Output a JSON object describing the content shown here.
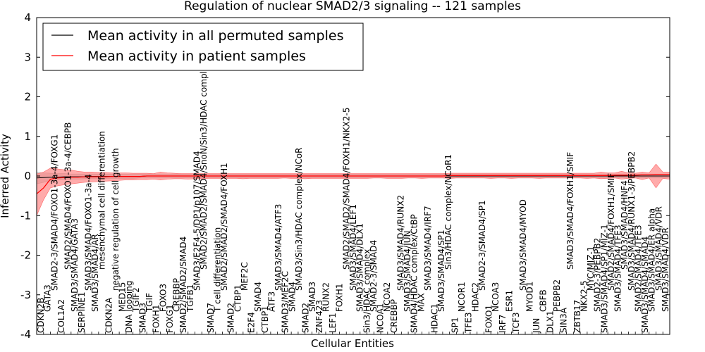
{
  "chart_data": {
    "type": "line",
    "title": "Regulation of nuclear SMAD2/3 signaling -- 121 samples",
    "xlabel": "Cellular Entities",
    "ylabel": "Inferred Activity",
    "ylim": [
      -4,
      4
    ],
    "yticks": [
      -4,
      -3,
      -2,
      -1,
      0,
      1,
      2,
      3,
      4
    ],
    "grid": false,
    "legend_position": "top-left",
    "categories": [
      "CDKN2B",
      "GATA3",
      "SMAD2-3/SMAD4/FOXO1-3a-4/FOXG1",
      "COL1A2",
      "SMAD2/SMAD4/FOXO1-3a-4/CEBPB",
      "SMAD3/SMAD4/GATA3",
      "SERPINE1",
      "SMAD3/SMAD4/FOXO1-3a-4",
      "SMAD3/SMAD4/AR",
      "mesenchymal cell differentiation",
      "CDKN2A",
      "negative regulation of cell growth",
      "MED15",
      "DNA looping",
      "TGIF2",
      "SMAD3",
      "TGIF",
      "FOXH1",
      "FOXO3",
      "FOXG1",
      "CREBBP",
      "SMAD2/SMAD2/SMAD4",
      "TGFB1",
      "SMAD3/E2F4-5/DP1/p107/SMAD4",
      "SMAD2/SMAD2/SMAD4/SnoN/Sin3/HDAC complex/NCoR",
      "SMAD7",
      "T cell differentiation",
      "SMAD2/SMAD2/SMAD4/FOXH1",
      "SMAD2",
      "CTBP1",
      "MEF2C",
      "E2F4",
      "SMAD4",
      "CTBP1",
      "ATF3",
      "SMAD3/SMAD4/ATF3",
      "SMAD3/MEF2C",
      "SMAD4",
      "SMAD3/Sin3/HDAC complex/NCoR",
      "SMAD2",
      "SMAD3",
      "ZNF423",
      "RUNX2",
      "LEF1",
      "FOXH1",
      "SMAD2/SMAD2/SMAD4/FOXH1/NKX2-5",
      "SMAD3/SMAD4/LEF1",
      "SMAD3/SMAD4/DLX1",
      "Sin3/HDAC complex",
      "SMAD2-3/SMAD4",
      "NCOA1",
      "NCOA2",
      "CREBBP",
      "SMAD3/SMAD4/RUNX2",
      "SMAD3/SMAD4/JUN",
      "SMAD4/HDAC complex/CtBP",
      "MAX",
      "SMAD3/SMAD4/IRF7",
      "HDAC1",
      "SMAD3/SMAD4/SP1",
      "Sin3/HDAC complex/NCoR1",
      "SP1",
      "NCOR1",
      "TFE3",
      "HDAC2",
      "SMAD2-3/SMAD4/SP1",
      "FOXO1",
      "NCOA3",
      "IRF7",
      "ESR1",
      "TCF3",
      "SMAD3/SMAD4/MYOD",
      "MYOD1",
      "JUN",
      "CBFB",
      "DLX1",
      "PEBPB2",
      "SIN3A",
      "SMAD3/SMAD4/FOXH1/SMIF",
      "ZBTB17",
      "NKX2-5",
      "MYC/MIZ-1",
      "SMAD2-3/PEBPB2",
      "SMAD3/SMAD4/SP1/MIZ-1",
      "SMAD2/SMAD4/FOXH1/SMIF",
      "SMAD3/SMAD4/TFE3",
      "SMAD3/SMAD4/HNF4",
      "SMAD3/SMAD4/RUNX1-3/PEBPB2",
      "SMAD2/SMAD4/TFE3",
      "SMAD3/SMAD4/SMAD4",
      "SMAD3/SMAD4/ER alpha",
      "SMAD3/SMAD4/VDR",
      "SMAD3/SMAD4/VDR"
    ],
    "label_heights": [
      "1",
      "2",
      "3",
      "1",
      "4",
      "2",
      "1",
      "3",
      "2",
      "4",
      "1",
      "3",
      "2",
      "1",
      "2",
      "1",
      "2",
      "1",
      "2",
      "1",
      "2",
      "1",
      "2",
      "3",
      "4",
      "1",
      "2",
      "3",
      "1",
      "2",
      "3",
      "1",
      "2",
      "1",
      "2",
      "3",
      "1",
      "2",
      "3",
      "1",
      "2",
      "1",
      "2",
      "1",
      "2",
      "4",
      "3",
      "2",
      "1",
      "2",
      "1",
      "2",
      "1",
      "3",
      "2",
      "1",
      "2",
      "3",
      "1",
      "2",
      "4",
      "1",
      "2",
      "1",
      "2",
      "3",
      "1",
      "2",
      "1",
      "2",
      "1",
      "3",
      "2",
      "1",
      "2",
      "1",
      "2",
      "1",
      "4",
      "1",
      "2",
      "3",
      "2",
      "1",
      "3",
      "2",
      "4",
      "3",
      "2",
      "1",
      "2",
      "3",
      "2"
    ],
    "series": [
      {
        "name": "Mean activity in all permuted samples",
        "color": "#000000",
        "values": [
          -0.05,
          -0.04,
          -0.03,
          -0.03,
          -0.02,
          -0.02,
          -0.02,
          -0.02,
          -0.01,
          -0.01,
          -0.01,
          -0.01,
          -0.01,
          -0.01,
          -0.01,
          -0.01,
          0.0,
          0.0,
          0.0,
          0.0,
          0.0,
          0.0,
          0.0,
          0.0,
          0.0,
          0.0,
          0.0,
          0.0,
          0.0,
          0.0,
          0.0,
          0.0,
          0.0,
          0.0,
          0.0,
          0.0,
          0.0,
          0.0,
          0.0,
          0.0,
          0.0,
          0.0,
          0.0,
          0.0,
          0.0,
          0.0,
          0.0,
          0.0,
          0.0,
          0.0,
          0.0,
          0.0,
          0.0,
          0.0,
          0.0,
          0.0,
          0.0,
          0.0,
          0.0,
          0.0,
          0.0,
          0.0,
          0.0,
          0.0,
          0.0,
          0.0,
          0.0,
          0.0,
          0.0,
          0.0,
          0.0,
          0.0,
          0.0,
          0.0,
          0.0,
          0.0,
          0.0,
          0.0,
          0.0,
          0.0,
          0.0,
          0.0,
          0.0,
          0.0,
          0.0,
          0.0,
          0.0,
          0.0,
          0.0,
          0.0,
          0.0,
          0.0,
          0.0
        ]
      },
      {
        "name": "Mean activity in patient samples",
        "color": "#ff0000",
        "values": [
          -0.45,
          -0.3,
          -0.08,
          -0.05,
          -0.04,
          -0.03,
          -0.03,
          -0.02,
          -0.02,
          -0.02,
          -0.02,
          -0.01,
          -0.01,
          -0.01,
          -0.01,
          -0.01,
          0.0,
          0.0,
          0.0,
          0.0,
          0.0,
          0.0,
          0.0,
          0.0,
          0.0,
          0.0,
          0.0,
          0.0,
          0.0,
          0.0,
          0.0,
          0.0,
          0.0,
          0.0,
          0.0,
          0.0,
          0.0,
          0.0,
          0.0,
          0.0,
          0.0,
          0.0,
          0.0,
          0.0,
          0.0,
          0.0,
          0.0,
          0.0,
          0.0,
          0.0,
          0.0,
          0.0,
          0.0,
          0.0,
          0.0,
          0.0,
          0.0,
          0.0,
          0.0,
          0.0,
          0.01,
          0.01,
          0.01,
          0.01,
          0.01,
          0.01,
          0.01,
          0.01,
          0.01,
          0.01,
          0.01,
          0.01,
          0.01,
          0.01,
          0.01,
          0.01,
          0.01,
          0.01,
          0.01,
          0.01,
          0.01,
          0.01,
          0.01,
          0.01,
          0.02,
          0.02,
          0.02,
          0.02,
          0.03,
          0.03,
          0.04,
          0.04,
          0.04
        ]
      }
    ],
    "bands": [
      {
        "series": "Mean activity in all permuted samples",
        "color": "#bbbbbb",
        "lower": [
          -0.2,
          -0.16,
          -0.12,
          -0.1,
          -0.09,
          -0.08,
          -0.08,
          -0.07,
          -0.07,
          -0.07,
          -0.06,
          -0.06,
          -0.06,
          -0.06,
          -0.06,
          -0.05,
          -0.05,
          -0.05,
          -0.05,
          -0.05,
          -0.05,
          -0.05,
          -0.05,
          -0.05,
          -0.05,
          -0.05,
          -0.05,
          -0.05,
          -0.05,
          -0.05,
          -0.05,
          -0.05,
          -0.05,
          -0.05,
          -0.05,
          -0.05,
          -0.05,
          -0.05,
          -0.05,
          -0.05,
          -0.05,
          -0.05,
          -0.05,
          -0.05,
          -0.05,
          -0.05,
          -0.05,
          -0.05,
          -0.05,
          -0.05,
          -0.05,
          -0.05,
          -0.05,
          -0.05,
          -0.05,
          -0.05,
          -0.05,
          -0.05,
          -0.05,
          -0.05,
          -0.05,
          -0.05,
          -0.05,
          -0.05,
          -0.05,
          -0.05,
          -0.05,
          -0.05,
          -0.05,
          -0.05,
          -0.05,
          -0.05,
          -0.05,
          -0.05,
          -0.05,
          -0.05,
          -0.05,
          -0.05,
          -0.05,
          -0.05,
          -0.05,
          -0.05,
          -0.05,
          -0.05,
          -0.05,
          -0.05,
          -0.05,
          -0.05,
          -0.05,
          -0.05,
          -0.05,
          -0.05,
          -0.05
        ],
        "upper": [
          0.1,
          0.08,
          0.07,
          0.06,
          0.06,
          0.05,
          0.05,
          0.05,
          0.05,
          0.05,
          0.05,
          0.05,
          0.05,
          0.05,
          0.05,
          0.05,
          0.05,
          0.05,
          0.05,
          0.05,
          0.05,
          0.05,
          0.05,
          0.05,
          0.05,
          0.05,
          0.05,
          0.05,
          0.05,
          0.05,
          0.05,
          0.05,
          0.05,
          0.05,
          0.05,
          0.05,
          0.05,
          0.05,
          0.05,
          0.05,
          0.05,
          0.05,
          0.05,
          0.05,
          0.05,
          0.05,
          0.05,
          0.05,
          0.05,
          0.05,
          0.05,
          0.05,
          0.05,
          0.05,
          0.05,
          0.05,
          0.05,
          0.05,
          0.05,
          0.05,
          0.05,
          0.05,
          0.05,
          0.05,
          0.05,
          0.05,
          0.05,
          0.05,
          0.05,
          0.05,
          0.05,
          0.05,
          0.05,
          0.05,
          0.05,
          0.05,
          0.05,
          0.05,
          0.05,
          0.05,
          0.05,
          0.05,
          0.05,
          0.05,
          0.05,
          0.05,
          0.05,
          0.05,
          0.05,
          0.05,
          0.05,
          0.05,
          0.05
        ]
      },
      {
        "series": "Mean activity in patient samples",
        "color": "#ff6666",
        "lower": [
          -1.0,
          -0.6,
          -0.3,
          -0.25,
          -0.22,
          -0.2,
          -0.18,
          -0.16,
          -0.15,
          -0.14,
          -0.13,
          -0.12,
          -0.11,
          -0.1,
          -0.1,
          -0.09,
          -0.09,
          -0.08,
          -0.1,
          -0.08,
          -0.07,
          -0.07,
          -0.08,
          -0.07,
          -0.07,
          -0.06,
          -0.06,
          -0.06,
          -0.06,
          -0.06,
          -0.07,
          -0.06,
          -0.06,
          -0.06,
          -0.06,
          -0.06,
          -0.05,
          -0.06,
          -0.06,
          -0.07,
          -0.06,
          -0.06,
          -0.06,
          -0.06,
          -0.06,
          -0.06,
          -0.06,
          -0.06,
          -0.06,
          -0.05,
          -0.05,
          -0.06,
          -0.06,
          -0.06,
          -0.05,
          -0.05,
          -0.06,
          -0.05,
          -0.05,
          -0.05,
          -0.06,
          -0.05,
          -0.05,
          -0.05,
          -0.05,
          -0.05,
          -0.06,
          -0.05,
          -0.05,
          -0.06,
          -0.05,
          -0.05,
          -0.05,
          -0.06,
          -0.05,
          -0.05,
          -0.05,
          -0.05,
          -0.05,
          -0.05,
          -0.06,
          -0.05,
          -0.07,
          -0.06,
          -0.05,
          -0.08,
          -0.06,
          -0.05,
          -0.09,
          -0.05,
          -0.3,
          -0.06,
          -0.08
        ],
        "upper": [
          0.05,
          0.1,
          0.2,
          0.18,
          0.16,
          0.15,
          0.12,
          0.1,
          0.1,
          0.09,
          0.09,
          0.08,
          0.08,
          0.08,
          0.07,
          0.07,
          0.07,
          0.06,
          0.1,
          0.08,
          0.07,
          0.06,
          0.06,
          0.06,
          0.06,
          0.06,
          0.06,
          0.06,
          0.06,
          0.06,
          0.06,
          0.06,
          0.06,
          0.06,
          0.06,
          0.06,
          0.06,
          0.06,
          0.06,
          0.06,
          0.06,
          0.06,
          0.06,
          0.06,
          0.06,
          0.06,
          0.06,
          0.06,
          0.06,
          0.06,
          0.06,
          0.06,
          0.06,
          0.06,
          0.06,
          0.06,
          0.06,
          0.06,
          0.06,
          0.06,
          0.07,
          0.07,
          0.07,
          0.07,
          0.07,
          0.07,
          0.07,
          0.07,
          0.07,
          0.07,
          0.07,
          0.07,
          0.07,
          0.07,
          0.07,
          0.07,
          0.07,
          0.07,
          0.07,
          0.07,
          0.07,
          0.07,
          0.1,
          0.08,
          0.08,
          0.12,
          0.08,
          0.07,
          0.1,
          0.08,
          0.3,
          0.1,
          0.1
        ]
      }
    ]
  }
}
